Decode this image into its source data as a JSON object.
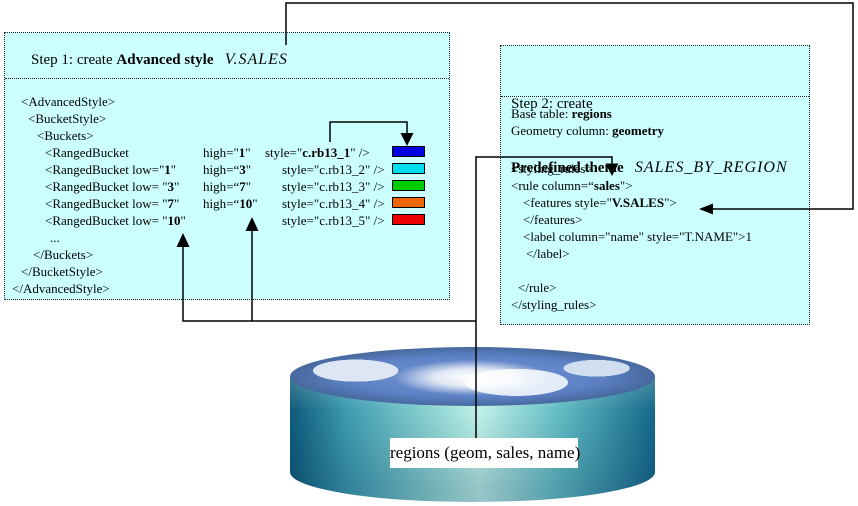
{
  "colors": {
    "panel_bg": "#ccffff",
    "line": "#000000"
  },
  "step1": {
    "title_html": "Step 1: create <b>Advanced style</b>  &nbsp;<i>V.SALES</i>",
    "open": [
      "&lt;AdvancedStyle&gt;",
      "&lt;BucketStyle&gt;",
      "&lt;Buckets&gt;"
    ],
    "buckets": [
      {
        "c1": "&lt;RangedBucket",
        "c2": "high=\"<b>1</b>\"",
        "c3": "style=\"<b>c.rb13_1</b>\" /&gt;",
        "color": "#0000e0"
      },
      {
        "c1": "&lt;RangedBucket low=\"<b>1</b>\"",
        "c2": "high=“<b>3</b>\"",
        "c3": "style=\"c.rb13_2\" /&gt;",
        "color": "#00ddf0"
      },
      {
        "c1": "&lt;RangedBucket low= \"<b>3</b>\"",
        "c2": "high=“<b>7</b>\"",
        "c3": "style=\"c.rb13_3\" /&gt;",
        "color": "#00cc00"
      },
      {
        "c1": "&lt;RangedBucket low= \"<b>7</b>\"",
        "c2": "high=“<b>10</b>\"",
        "c3": "style=\"c.rb13_4\" /&gt;",
        "color": "#ee6600"
      },
      {
        "c1": "&lt;RangedBucket low= \"<b>10</b>\"",
        "c2": "",
        "c3": "style=\"c.rb13_5\" /&gt;",
        "color": "#ee0000"
      }
    ],
    "ellipsis": "...",
    "close": [
      "&lt;/Buckets&gt;",
      "&lt;/BucketStyle&gt;",
      "&lt;/AdvancedStyle&gt;"
    ]
  },
  "step2": {
    "title_line1": "Step 2: create",
    "title_line2_html": "<b>Predefined theme</b>  &nbsp;<i>SALES_BY_REGION</i>",
    "base_table_html": "Base table: <b>regions</b>",
    "geometry_html": "Geometry column: <b>geometry</b>",
    "code": [
      "&lt;styling_rules&gt;",
      "&lt;rule column=“<b>sales</b>\"&gt;",
      "&lt;features style=\"<b>V.SALES</b>\"&gt;",
      "&lt;/features&gt;",
      "&lt;label column=\"name\" style=\"T.NAME\"&gt;1",
      "&lt;/label&gt;",
      "",
      "&lt;/rule&gt;",
      "&lt;/styling_rules&gt;"
    ]
  },
  "database": {
    "label": "regions (geom, sales, name)"
  }
}
